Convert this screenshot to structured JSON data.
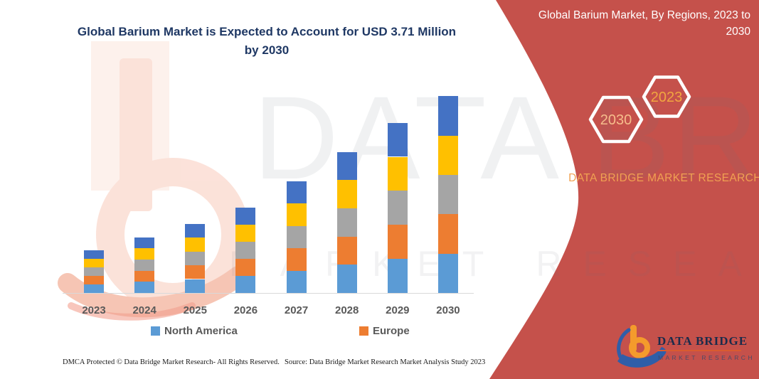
{
  "title": "Global Barium Market is Expected to Account for USD 3.71 Million by 2030",
  "side_panel": {
    "header": "Global Barium Market, By Regions, 2023 to 2030",
    "hexagon_front_label": "2030",
    "hexagon_back_label": "2023",
    "brand_name": "DATA BRIDGE MARKET RESEARCH",
    "logo_text": "DATA BRIDGE",
    "logo_tagline": "MARKET RESEARCH"
  },
  "watermark": {
    "primary": "DATA BRIDGE",
    "secondary": "MARKET RESEARCH"
  },
  "chart_data": {
    "type": "bar",
    "stacked": true,
    "title": "Global Barium Market is Expected to Account for USD 3.71 Million by 2030",
    "unit": "USD Million",
    "categories": [
      "2023",
      "2024",
      "2025",
      "2026",
      "2027",
      "2028",
      "2029",
      "2030"
    ],
    "series": [
      {
        "name": "North America",
        "color": "#5B9BD5",
        "values": [
          0.16,
          0.21,
          0.26,
          0.32,
          0.42,
          0.53,
          0.64,
          0.74
        ]
      },
      {
        "name": "Europe",
        "color": "#ED7D31",
        "values": [
          0.16,
          0.21,
          0.26,
          0.32,
          0.42,
          0.53,
          0.64,
          0.74
        ]
      },
      {
        "name": "",
        "color": "#A5A5A5",
        "values": [
          0.16,
          0.21,
          0.26,
          0.32,
          0.42,
          0.53,
          0.64,
          0.74
        ]
      },
      {
        "name": "",
        "color": "#FFC000",
        "values": [
          0.16,
          0.21,
          0.26,
          0.32,
          0.42,
          0.53,
          0.64,
          0.74
        ]
      },
      {
        "name": "",
        "color": "#4472C4",
        "values": [
          0.16,
          0.21,
          0.26,
          0.32,
          0.42,
          0.53,
          0.64,
          0.75
        ]
      }
    ],
    "totals": [
      0.8,
      1.05,
      1.3,
      1.6,
      2.1,
      2.65,
      3.2,
      3.71
    ],
    "legend": [
      {
        "label": "North America",
        "color": "#5B9BD5"
      },
      {
        "label": "Europe",
        "color": "#ED7D31"
      }
    ],
    "legend_position": "bottom",
    "gridlines": false,
    "ylim": [
      0,
      3.9
    ],
    "xlabel": "",
    "ylabel": ""
  },
  "footer": {
    "left": "DMCA Protected © Data Bridge Market Research-  All Rights Reserved.",
    "right": "Source: Data Bridge Market Research  Market Analysis Study 2023"
  },
  "colors": {
    "panel_red": "#C5514B",
    "title_blue": "#1F3864",
    "axis_text_gray": "#595959",
    "accent_gold": "#F0A152",
    "hex_front_text": "#F6BD8B",
    "hex_back_text": "#F1A640",
    "axis_line": "#D9D9D9",
    "logo_navy": "#1B2B4B",
    "logo_orange": "#F49B2C",
    "logo_blue": "#2F5EA8"
  }
}
